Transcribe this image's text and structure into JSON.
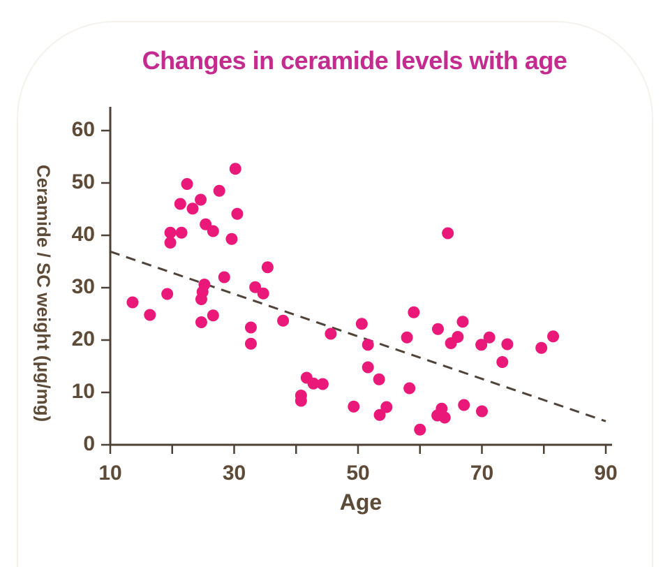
{
  "chart": {
    "style": {
      "title_color": "#c32b8f",
      "axis_line_color": "#4d4136",
      "tick_label_color": "#5d4a37",
      "axis_title_color": "#5d4a37",
      "point_color": "#ea1878",
      "trend_line_color": "#4f443a",
      "card_outline_color": "#f5f2ee"
    }
  },
  "chart_data": {
    "type": "scatter",
    "title": "Changes in ceramide levels with age",
    "xlabel": "Age",
    "ylabel": "Ceramide / SC weight (μg/mg)",
    "xlim": [
      10,
      90
    ],
    "ylim": [
      0,
      62
    ],
    "x_ticks_labeled": [
      10,
      30,
      50,
      70,
      90
    ],
    "x_ticks_all": [
      10,
      20,
      30,
      40,
      50,
      60,
      70,
      80,
      90
    ],
    "y_ticks": [
      0,
      10,
      20,
      30,
      40,
      50,
      60
    ],
    "grid": false,
    "legend": false,
    "points": [
      [
        13.6,
        27.2
      ],
      [
        16.4,
        24.8
      ],
      [
        19.2,
        28.8
      ],
      [
        19.7,
        40.5
      ],
      [
        19.7,
        38.6
      ],
      [
        21.5,
        40.5
      ],
      [
        21.3,
        46.0
      ],
      [
        22.4,
        49.8
      ],
      [
        23.3,
        45.1
      ],
      [
        24.6,
        46.8
      ],
      [
        25.4,
        42.1
      ],
      [
        26.6,
        40.8
      ],
      [
        24.7,
        23.4
      ],
      [
        25.2,
        30.6
      ],
      [
        24.9,
        29.2
      ],
      [
        24.7,
        27.8
      ],
      [
        26.6,
        24.7
      ],
      [
        27.6,
        48.5
      ],
      [
        28.4,
        32.0
      ],
      [
        29.6,
        39.3
      ],
      [
        30.2,
        52.7
      ],
      [
        30.5,
        44.1
      ],
      [
        33.4,
        30.1
      ],
      [
        34.7,
        28.9
      ],
      [
        32.7,
        22.4
      ],
      [
        32.7,
        19.3
      ],
      [
        35.4,
        33.9
      ],
      [
        37.9,
        23.7
      ],
      [
        40.8,
        9.4
      ],
      [
        40.8,
        8.4
      ],
      [
        41.7,
        12.8
      ],
      [
        42.8,
        11.7
      ],
      [
        44.3,
        11.6
      ],
      [
        45.6,
        21.2
      ],
      [
        49.3,
        7.3
      ],
      [
        50.6,
        23.1
      ],
      [
        51.6,
        19.1
      ],
      [
        51.6,
        14.8
      ],
      [
        53.4,
        12.5
      ],
      [
        53.5,
        5.7
      ],
      [
        54.6,
        7.2
      ],
      [
        58.3,
        10.8
      ],
      [
        57.9,
        20.5
      ],
      [
        59.0,
        25.3
      ],
      [
        60.0,
        2.9
      ],
      [
        62.9,
        22.1
      ],
      [
        62.8,
        5.6
      ],
      [
        63.5,
        6.9
      ],
      [
        64.0,
        5.2
      ],
      [
        64.5,
        40.4
      ],
      [
        65.0,
        19.4
      ],
      [
        66.1,
        20.6
      ],
      [
        66.9,
        23.5
      ],
      [
        67.1,
        7.6
      ],
      [
        69.9,
        19.1
      ],
      [
        70.0,
        6.4
      ],
      [
        71.2,
        20.5
      ],
      [
        73.3,
        15.8
      ],
      [
        74.1,
        19.2
      ],
      [
        79.6,
        18.5
      ],
      [
        81.5,
        20.7
      ]
    ],
    "trend_line": {
      "style": "dashed",
      "from": [
        10,
        36.9
      ],
      "to": [
        90,
        4.5
      ]
    }
  }
}
